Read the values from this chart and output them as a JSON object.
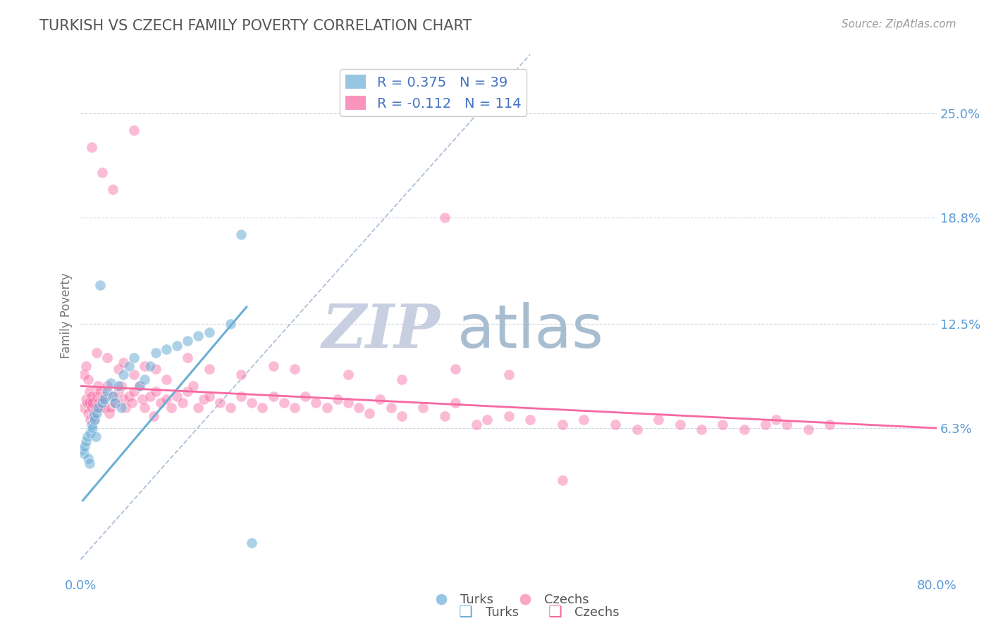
{
  "title": "TURKISH VS CZECH FAMILY POVERTY CORRELATION CHART",
  "source": "Source: ZipAtlas.com",
  "ylabel": "Family Poverty",
  "xlim": [
    0.0,
    0.8
  ],
  "ylim": [
    -0.025,
    0.285
  ],
  "yticks": [
    0.063,
    0.125,
    0.188,
    0.25
  ],
  "ytick_labels": [
    "6.3%",
    "12.5%",
    "18.8%",
    "25.0%"
  ],
  "xticks": [
    0.0,
    0.8
  ],
  "xtick_labels": [
    "0.0%",
    "80.0%"
  ],
  "turks_color": "#6baed6",
  "czechs_color": "#f768a1",
  "turks_R": 0.375,
  "turks_N": 39,
  "czechs_R": -0.112,
  "czechs_N": 114,
  "background_color": "#ffffff",
  "grid_color": "#c8d4e0",
  "watermark_zip": "ZIP",
  "watermark_atlas": "atlas",
  "watermark_color_zip": "#c8cfe0",
  "watermark_color_atlas": "#a8bdd0",
  "title_color": "#555555",
  "axis_label_color": "#5b9bd5",
  "legend_turks_label": "Turks",
  "legend_czechs_label": "Czechs",
  "turks_line_x": [
    0.002,
    0.155
  ],
  "turks_line_y": [
    0.02,
    0.135
  ],
  "czechs_line_x": [
    0.0,
    0.8
  ],
  "czechs_line_y": [
    0.088,
    0.063
  ],
  "diag_line_x": [
    0.0,
    0.42
  ],
  "diag_line_y": [
    -0.015,
    0.285
  ],
  "turks_x": [
    0.002,
    0.003,
    0.004,
    0.005,
    0.006,
    0.007,
    0.008,
    0.009,
    0.01,
    0.011,
    0.012,
    0.013,
    0.014,
    0.015,
    0.016,
    0.018,
    0.02,
    0.022,
    0.025,
    0.028,
    0.03,
    0.032,
    0.035,
    0.038,
    0.04,
    0.045,
    0.05,
    0.055,
    0.06,
    0.065,
    0.07,
    0.08,
    0.09,
    0.1,
    0.11,
    0.12,
    0.14,
    0.15,
    0.16
  ],
  "turks_y": [
    0.05,
    0.048,
    0.052,
    0.055,
    0.058,
    0.045,
    0.042,
    0.06,
    0.065,
    0.063,
    0.07,
    0.068,
    0.058,
    0.072,
    0.075,
    0.148,
    0.078,
    0.08,
    0.085,
    0.09,
    0.082,
    0.078,
    0.088,
    0.075,
    0.095,
    0.1,
    0.105,
    0.088,
    0.092,
    0.1,
    0.108,
    0.11,
    0.112,
    0.115,
    0.118,
    0.12,
    0.125,
    0.178,
    -0.005
  ],
  "czechs_x": [
    0.003,
    0.005,
    0.006,
    0.007,
    0.008,
    0.008,
    0.009,
    0.01,
    0.01,
    0.011,
    0.012,
    0.013,
    0.014,
    0.015,
    0.016,
    0.017,
    0.018,
    0.019,
    0.02,
    0.022,
    0.023,
    0.025,
    0.027,
    0.028,
    0.03,
    0.032,
    0.035,
    0.038,
    0.04,
    0.042,
    0.045,
    0.048,
    0.05,
    0.055,
    0.058,
    0.06,
    0.065,
    0.068,
    0.07,
    0.075,
    0.08,
    0.085,
    0.09,
    0.095,
    0.1,
    0.105,
    0.11,
    0.115,
    0.12,
    0.13,
    0.14,
    0.15,
    0.16,
    0.17,
    0.18,
    0.19,
    0.2,
    0.21,
    0.22,
    0.23,
    0.24,
    0.25,
    0.26,
    0.27,
    0.28,
    0.29,
    0.3,
    0.32,
    0.34,
    0.35,
    0.37,
    0.38,
    0.4,
    0.42,
    0.45,
    0.47,
    0.5,
    0.52,
    0.54,
    0.56,
    0.58,
    0.6,
    0.62,
    0.64,
    0.65,
    0.66,
    0.68,
    0.7,
    0.003,
    0.005,
    0.007,
    0.015,
    0.025,
    0.035,
    0.04,
    0.05,
    0.06,
    0.07,
    0.08,
    0.1,
    0.12,
    0.15,
    0.18,
    0.2,
    0.25,
    0.3,
    0.35,
    0.4,
    0.01,
    0.02,
    0.03,
    0.05,
    0.34,
    0.45
  ],
  "czechs_y": [
    0.075,
    0.08,
    0.078,
    0.072,
    0.085,
    0.078,
    0.068,
    0.075,
    0.082,
    0.078,
    0.072,
    0.068,
    0.075,
    0.082,
    0.088,
    0.078,
    0.085,
    0.075,
    0.08,
    0.075,
    0.082,
    0.088,
    0.072,
    0.075,
    0.082,
    0.078,
    0.085,
    0.088,
    0.08,
    0.075,
    0.082,
    0.078,
    0.085,
    0.088,
    0.08,
    0.075,
    0.082,
    0.07,
    0.085,
    0.078,
    0.08,
    0.075,
    0.082,
    0.078,
    0.085,
    0.088,
    0.075,
    0.08,
    0.082,
    0.078,
    0.075,
    0.082,
    0.078,
    0.075,
    0.082,
    0.078,
    0.075,
    0.082,
    0.078,
    0.075,
    0.08,
    0.078,
    0.075,
    0.072,
    0.08,
    0.075,
    0.07,
    0.075,
    0.07,
    0.078,
    0.065,
    0.068,
    0.07,
    0.068,
    0.065,
    0.068,
    0.065,
    0.062,
    0.068,
    0.065,
    0.062,
    0.065,
    0.062,
    0.065,
    0.068,
    0.065,
    0.062,
    0.065,
    0.095,
    0.1,
    0.092,
    0.108,
    0.105,
    0.098,
    0.102,
    0.095,
    0.1,
    0.098,
    0.092,
    0.105,
    0.098,
    0.095,
    0.1,
    0.098,
    0.095,
    0.092,
    0.098,
    0.095,
    0.23,
    0.215,
    0.205,
    0.24,
    0.188,
    0.032
  ]
}
